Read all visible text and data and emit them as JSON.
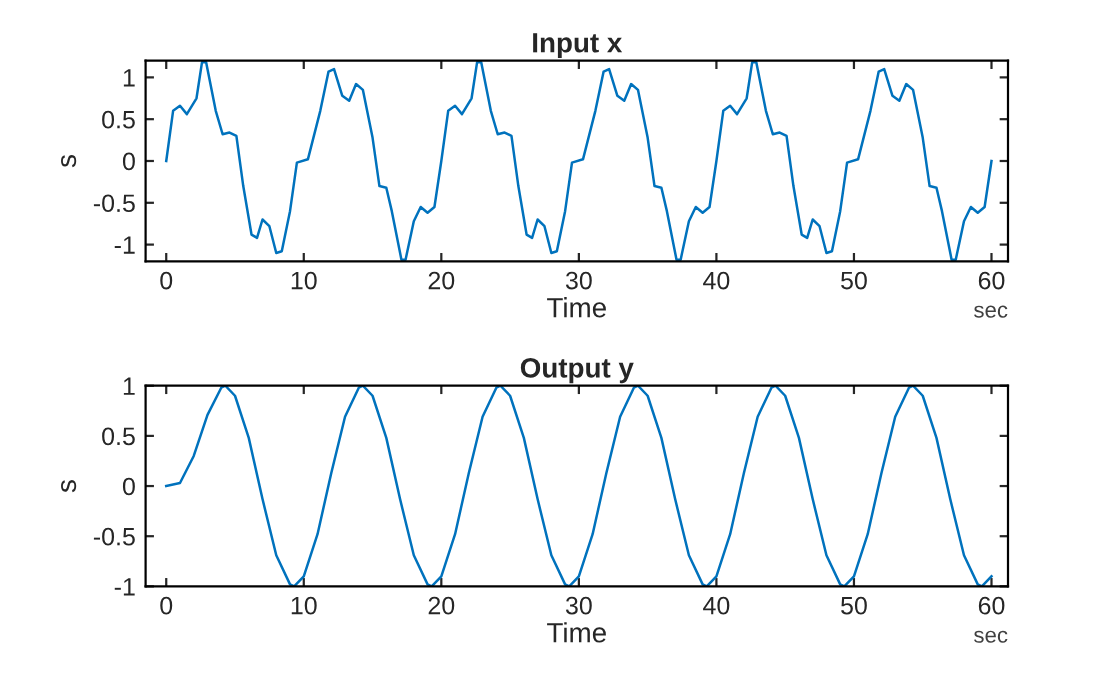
{
  "chart_data": [
    {
      "type": "line",
      "title": "Input x",
      "xlabel": "Time",
      "ylabel": "s",
      "annotations": [
        "sec"
      ],
      "xlim": [
        -1.5,
        61.2
      ],
      "xticks": [
        0,
        10,
        20,
        30,
        40,
        50,
        60
      ],
      "ylim": [
        -1.2,
        1.2
      ],
      "yticks": [
        -1,
        -0.5,
        0,
        0.5,
        1
      ],
      "grid": false,
      "line_style": "solid",
      "series": [
        {
          "color": "#0072bd",
          "x": [
            0,
            0.5,
            1.0,
            1.5,
            2.2,
            2.6,
            2.9,
            3.6,
            4.1,
            4.6,
            5.1,
            5.6,
            6.2,
            6.6,
            7.0,
            7.5,
            8.0,
            8.4,
            9.0,
            9.5,
            10.3,
            11.2,
            11.8,
            12.2,
            12.8,
            13.3,
            13.8,
            14.3,
            15.0,
            15.5,
            16.0,
            16.4,
            17.1,
            17.4,
            18.0,
            18.5,
            19.0,
            19.5,
            20.0,
            20.5,
            21.0,
            21.5,
            22.2,
            22.6,
            22.9,
            23.6,
            24.1,
            24.6,
            25.1,
            25.6,
            26.2,
            26.6,
            27.0,
            27.5,
            28.0,
            28.4,
            29.0,
            29.5,
            30.3,
            31.2,
            31.8,
            32.2,
            32.8,
            33.3,
            33.8,
            34.3,
            35.0,
            35.5,
            36.0,
            36.4,
            37.1,
            37.4,
            38.0,
            38.5,
            39.0,
            39.5,
            40.0,
            40.5,
            41.0,
            41.5,
            42.2,
            42.6,
            42.9,
            43.6,
            44.1,
            44.6,
            45.1,
            45.6,
            46.2,
            46.6,
            47.0,
            47.5,
            48.0,
            48.4,
            49.0,
            49.5,
            50.3,
            51.2,
            51.8,
            52.2,
            52.8,
            53.3,
            53.8,
            54.3,
            55.0,
            55.5,
            56.0,
            56.4,
            57.1,
            57.4,
            58.0,
            58.5,
            59.0,
            59.5,
            60.0
          ],
          "values": [
            0,
            0.6,
            0.66,
            0.56,
            0.75,
            1.18,
            1.18,
            0.6,
            0.32,
            0.34,
            0.3,
            -0.3,
            -0.88,
            -0.92,
            -0.7,
            -0.78,
            -1.1,
            -1.08,
            -0.6,
            -0.02,
            0.02,
            0.6,
            1.07,
            1.1,
            0.78,
            0.72,
            0.92,
            0.85,
            0.28,
            -0.3,
            -0.32,
            -0.6,
            -1.18,
            -1.18,
            -0.72,
            -0.55,
            -0.62,
            -0.55,
            0,
            0.6,
            0.66,
            0.56,
            0.75,
            1.18,
            1.18,
            0.6,
            0.32,
            0.34,
            0.3,
            -0.3,
            -0.88,
            -0.92,
            -0.7,
            -0.78,
            -1.1,
            -1.08,
            -0.6,
            -0.02,
            0.02,
            0.6,
            1.07,
            1.1,
            0.78,
            0.72,
            0.92,
            0.85,
            0.28,
            -0.3,
            -0.32,
            -0.6,
            -1.18,
            -1.18,
            -0.72,
            -0.55,
            -0.62,
            -0.55,
            0,
            0.6,
            0.66,
            0.56,
            0.75,
            1.18,
            1.18,
            0.6,
            0.32,
            0.34,
            0.3,
            -0.3,
            -0.88,
            -0.92,
            -0.7,
            -0.78,
            -1.1,
            -1.08,
            -0.6,
            -0.02,
            0.02,
            0.6,
            1.07,
            1.1,
            0.78,
            0.72,
            0.92,
            0.85,
            0.28,
            -0.3,
            -0.32,
            -0.6,
            -1.18,
            -1.18,
            -0.72,
            -0.55,
            -0.62,
            -0.55,
            0
          ]
        }
      ]
    },
    {
      "type": "line",
      "title": "Output y",
      "xlabel": "Time",
      "ylabel": "s",
      "annotations": [
        "sec"
      ],
      "xlim": [
        -1.5,
        61.2
      ],
      "xticks": [
        0,
        10,
        20,
        30,
        40,
        50,
        60
      ],
      "ylim": [
        -1,
        1
      ],
      "yticks": [
        -1,
        -0.5,
        0,
        0.5,
        1
      ],
      "grid": false,
      "line_style": "solid",
      "series": [
        {
          "color": "#0072bd",
          "x": [
            0,
            1,
            2,
            3,
            4,
            4.3,
            5,
            6,
            7,
            8,
            9,
            9.3,
            10,
            11,
            12,
            13,
            14,
            14.3,
            15,
            16,
            17,
            18,
            19,
            19.3,
            20,
            21,
            22,
            23,
            24,
            24.3,
            25,
            26,
            27,
            28,
            29,
            29.3,
            30,
            31,
            32,
            33,
            34,
            34.3,
            35,
            36,
            37,
            38,
            39,
            39.3,
            40,
            41,
            42,
            43,
            44,
            44.3,
            45,
            46,
            47,
            48,
            49,
            49.3,
            50,
            51,
            52,
            53,
            54,
            54.3,
            55,
            56,
            57,
            58,
            59,
            59.3,
            60
          ],
          "values": [
            0,
            0.03,
            0.3,
            0.71,
            0.98,
            1,
            0.9,
            0.48,
            -0.13,
            -0.69,
            -0.98,
            -1,
            -0.9,
            -0.48,
            0.13,
            0.69,
            0.98,
            1,
            0.9,
            0.48,
            -0.13,
            -0.69,
            -0.98,
            -1,
            -0.9,
            -0.48,
            0.13,
            0.69,
            0.98,
            1,
            0.9,
            0.48,
            -0.13,
            -0.69,
            -0.98,
            -1,
            -0.9,
            -0.48,
            0.13,
            0.69,
            0.98,
            1,
            0.9,
            0.48,
            -0.13,
            -0.69,
            -0.98,
            -1,
            -0.9,
            -0.48,
            0.13,
            0.69,
            0.98,
            1,
            0.9,
            0.48,
            -0.13,
            -0.69,
            -0.98,
            -1,
            -0.9,
            -0.48,
            0.13,
            0.69,
            0.98,
            1,
            0.9,
            0.48,
            -0.13,
            -0.69,
            -0.98,
            -1,
            -0.9
          ]
        }
      ]
    }
  ]
}
